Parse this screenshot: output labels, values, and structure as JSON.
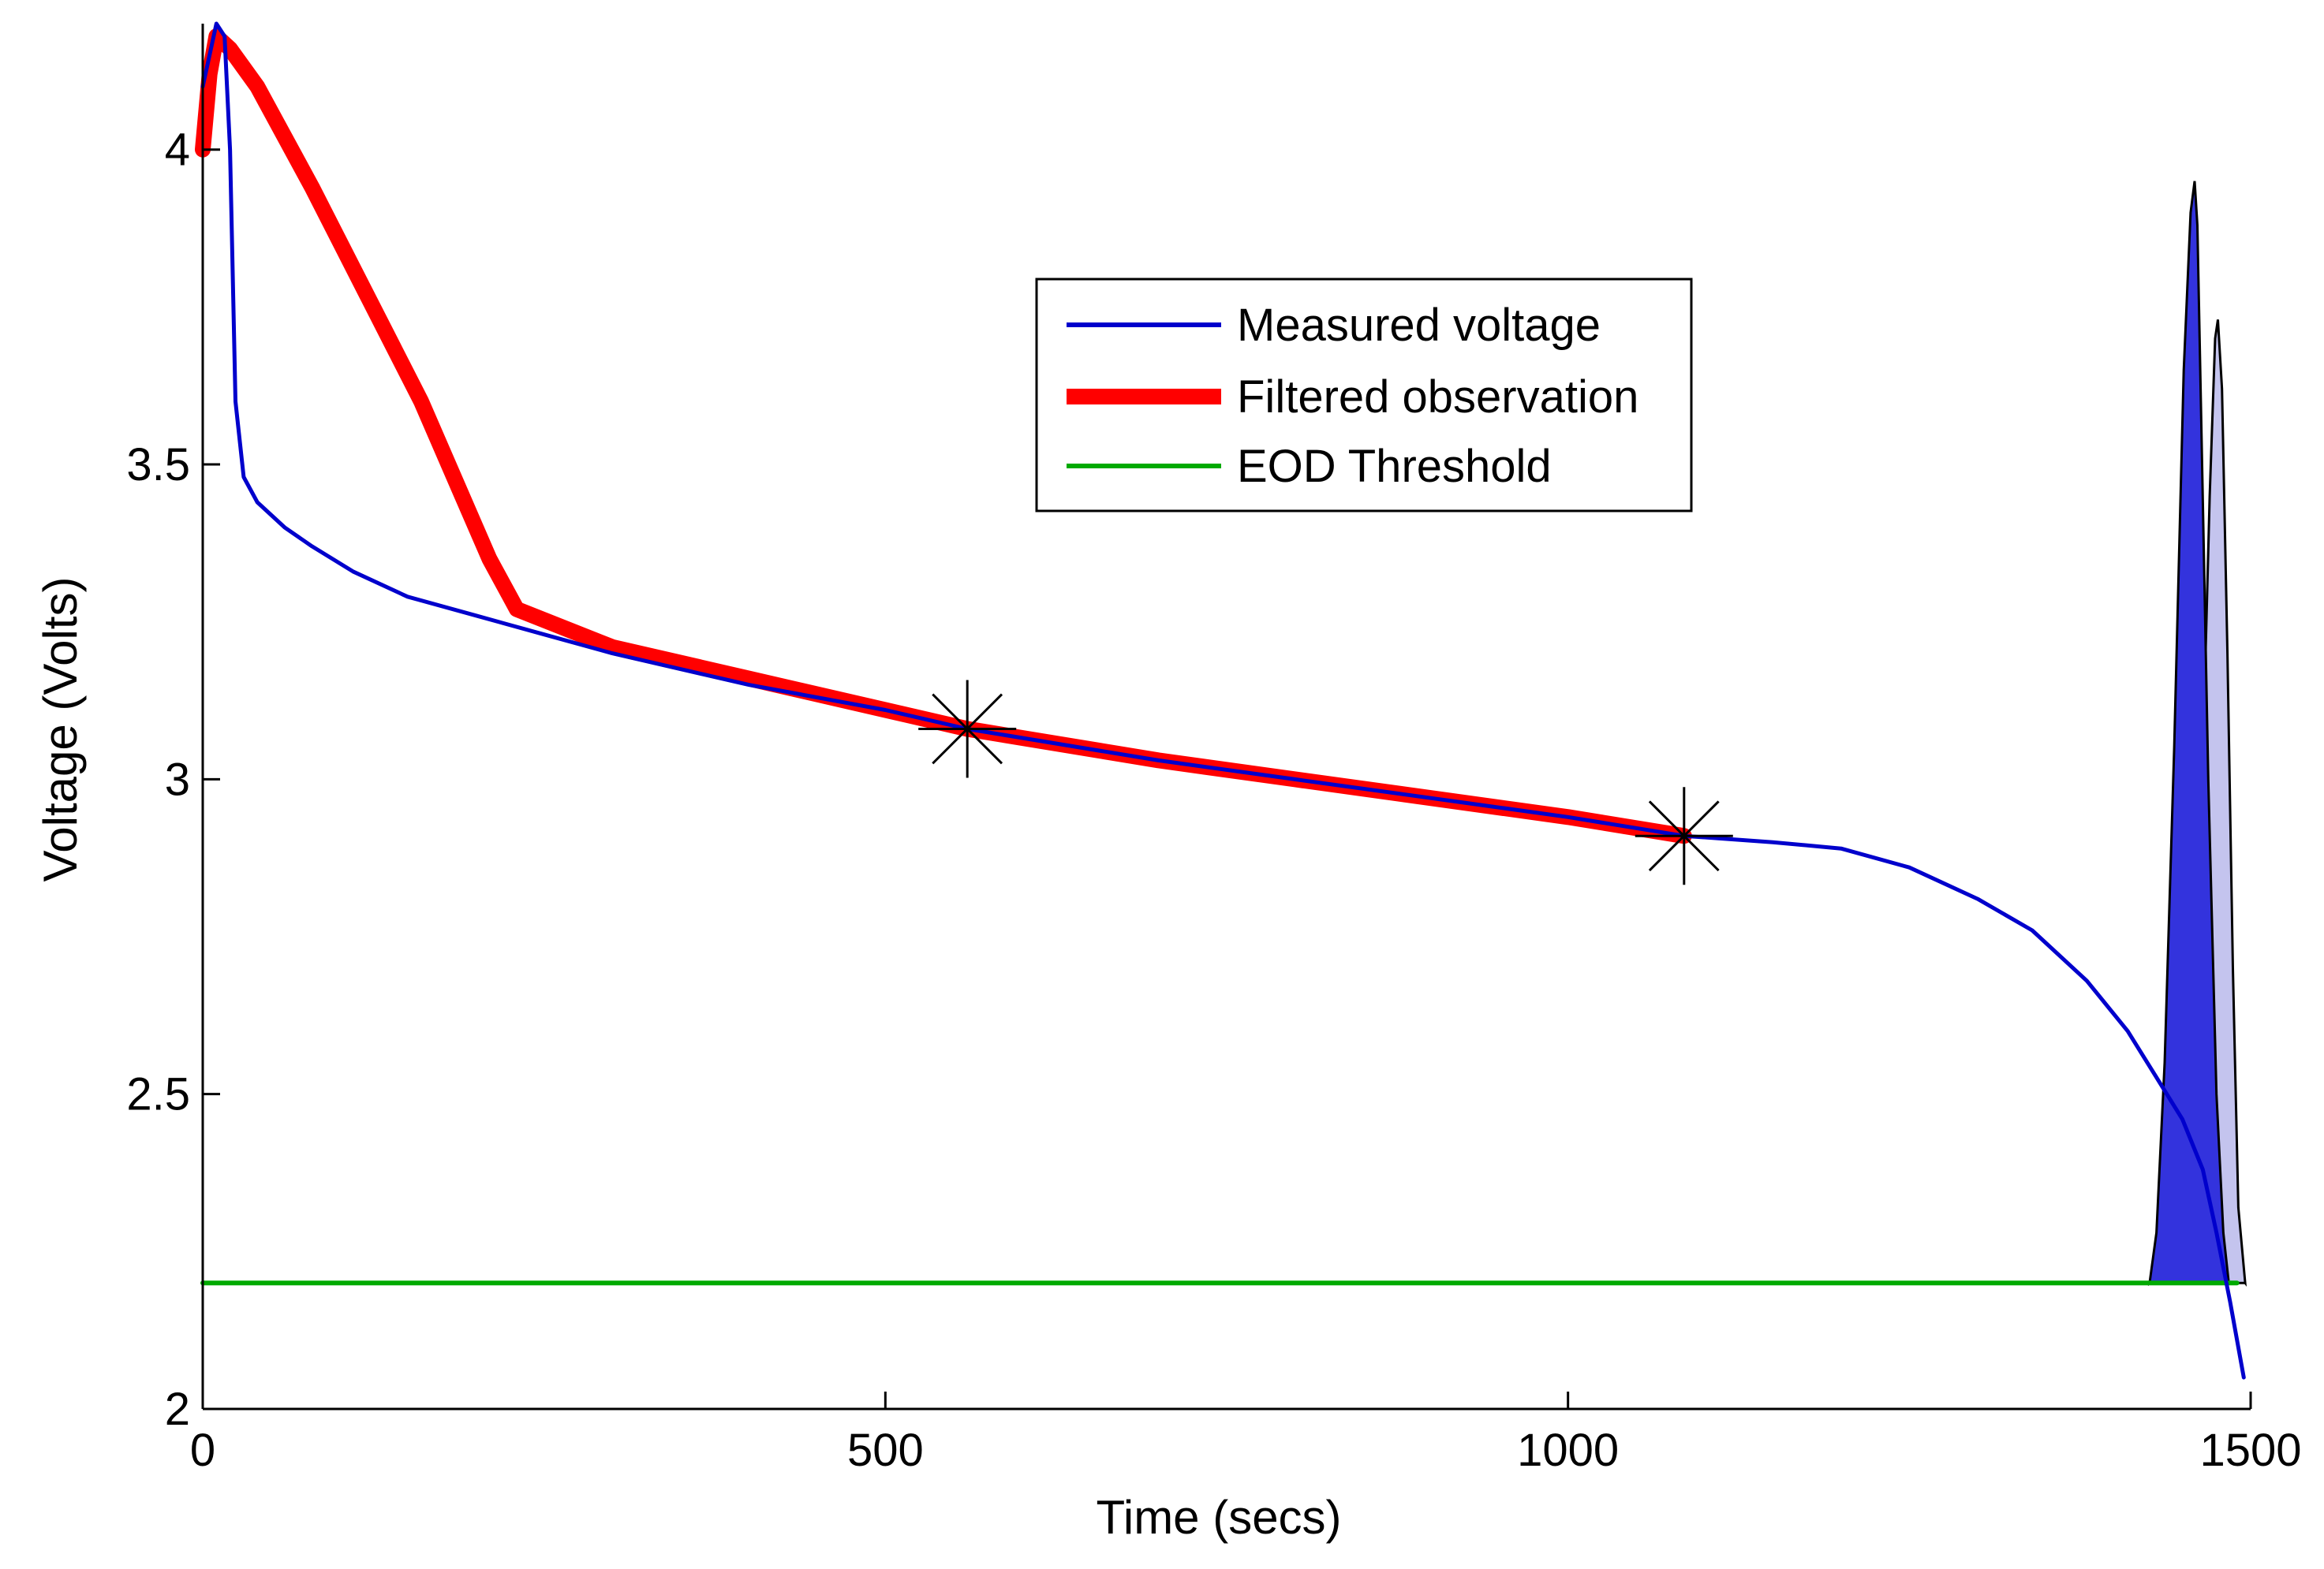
{
  "chart_data": {
    "type": "line",
    "title": "",
    "xlabel": "Time (secs)",
    "ylabel": "Voltage (Volts)",
    "xlim": [
      0,
      1500
    ],
    "ylim": [
      2,
      4.2
    ],
    "xticks": [
      0,
      500,
      1000,
      1500
    ],
    "xtick_labels": [
      "0",
      "500",
      "1000",
      "1500"
    ],
    "yticks": [
      2,
      2.5,
      3,
      3.5,
      4
    ],
    "ytick_labels": [
      "2",
      "2.5",
      "3",
      "3.5",
      "4"
    ],
    "grid": false,
    "legend_position": "upper-middle",
    "series": [
      {
        "name": "Measured voltage",
        "color": "#0000cc",
        "style": "thin-line",
        "x": [
          0,
          10,
          16,
          20,
          24,
          30,
          40,
          60,
          80,
          110,
          150,
          200,
          250,
          300,
          400,
          500,
          560,
          700,
          800,
          900,
          1000,
          1085,
          1150,
          1200,
          1250,
          1300,
          1340,
          1380,
          1410,
          1430,
          1450,
          1465,
          1475,
          1485,
          1495
        ],
        "values": [
          4.1,
          4.2,
          4.18,
          4.0,
          3.6,
          3.48,
          3.44,
          3.4,
          3.37,
          3.33,
          3.29,
          3.26,
          3.23,
          3.2,
          3.15,
          3.11,
          3.08,
          3.03,
          3.0,
          2.97,
          2.94,
          2.91,
          2.9,
          2.89,
          2.86,
          2.81,
          2.76,
          2.68,
          2.6,
          2.53,
          2.46,
          2.38,
          2.28,
          2.17,
          2.05
        ]
      },
      {
        "name": "Filtered observation",
        "color": "#ff0000",
        "style": "thick-line",
        "x": [
          0,
          5,
          10,
          20,
          40,
          80,
          120,
          160,
          190,
          210,
          230,
          300,
          400,
          500,
          560,
          700,
          800,
          900,
          1000,
          1085
        ],
        "values": [
          4.0,
          4.12,
          4.18,
          4.16,
          4.1,
          3.94,
          3.77,
          3.6,
          3.45,
          3.35,
          3.27,
          3.21,
          3.16,
          3.11,
          3.08,
          3.03,
          3.0,
          2.97,
          2.94,
          2.91
        ]
      },
      {
        "name": "EOD Threshold",
        "color": "#00aa00",
        "style": "line",
        "x": [
          0,
          1490
        ],
        "values": [
          2.2,
          2.2
        ]
      }
    ],
    "markers": [
      {
        "name": "prediction-point-1",
        "x": 560,
        "y": 3.08,
        "symbol": "asterisk"
      },
      {
        "name": "prediction-point-2",
        "x": 1085,
        "y": 2.91,
        "symbol": "asterisk"
      }
    ],
    "distributions": [
      {
        "name": "EOL prediction at t=560",
        "fill": "#3333dd",
        "baseline": 2.2,
        "x": [
          1426,
          1431,
          1437,
          1444,
          1451,
          1456,
          1459,
          1461,
          1464,
          1469,
          1475,
          1480,
          1484
        ],
        "values": [
          2.2,
          2.28,
          2.55,
          3.05,
          3.65,
          3.9,
          3.95,
          3.88,
          3.55,
          3.0,
          2.5,
          2.28,
          2.2
        ]
      },
      {
        "name": "EOL prediction at t=1085",
        "fill": "#c4c4ee",
        "baseline": 2.2,
        "x": [
          1440,
          1451,
          1458,
          1464,
          1470,
          1474,
          1476,
          1479,
          1483,
          1487,
          1491,
          1496
        ],
        "values": [
          2.2,
          2.26,
          2.48,
          2.95,
          3.45,
          3.7,
          3.73,
          3.62,
          3.2,
          2.7,
          2.32,
          2.2
        ]
      }
    ]
  }
}
